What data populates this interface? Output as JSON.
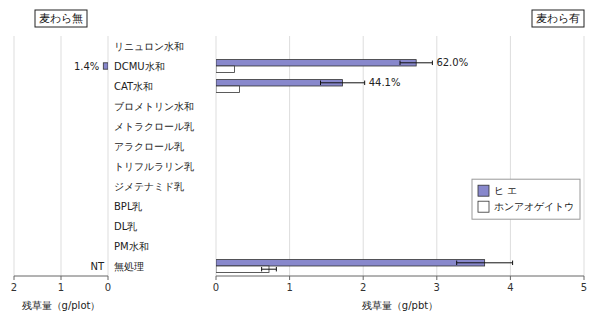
{
  "chart_data": [
    {
      "type": "bar",
      "orientation": "horizontal",
      "title": "麦わら無",
      "x_label": "残草量（g/plot）",
      "categories": [
        "リニュロン水和",
        "DCMU水和",
        "CAT水和",
        "ブロメトリン水和",
        "メトラクロール乳",
        "アラクロール乳",
        "トリフルラリン乳",
        "ジメテナミド乳",
        "BPL乳",
        "DL乳",
        "PM水和",
        "無処理"
      ],
      "series": [
        {
          "color": "#8888cc",
          "values": [
            null,
            0.1,
            null,
            null,
            null,
            null,
            null,
            null,
            null,
            null,
            null,
            null
          ]
        }
      ],
      "xlim": [
        2,
        0
      ],
      "xticks": [
        2,
        1,
        0
      ],
      "grid": true,
      "annotations": [
        {
          "text": "1.4%",
          "category": "DCMU水和"
        },
        {
          "text": "NT",
          "category": "無処理"
        }
      ]
    },
    {
      "type": "bar",
      "orientation": "horizontal",
      "title": "麦わら有",
      "x_label": "残草量（g/pbt）",
      "categories": [
        "リニュロン水和",
        "DCMU水和",
        "CAT水和",
        "ブロメトリン水和",
        "メトラクロール乳",
        "アラクロール乳",
        "トリフルラリン乳",
        "ジメテナミド乳",
        "BPL乳",
        "DL乳",
        "PM水和",
        "無処理"
      ],
      "series": [
        {
          "name": "ヒ エ",
          "color": "#8888cc",
          "values": [
            0,
            2.72,
            1.72,
            0,
            0,
            0,
            0,
            0,
            0,
            0,
            0,
            3.65
          ],
          "error": [
            0,
            0.22,
            0.3,
            0,
            0,
            0,
            0,
            0,
            0,
            0,
            0,
            0.38
          ]
        },
        {
          "name": "ホンアオゲイトウ",
          "color": "#ffffff",
          "values": [
            0,
            0.25,
            0.32,
            0,
            0,
            0,
            0,
            0,
            0,
            0,
            0,
            0.72
          ],
          "error": [
            0,
            0,
            0,
            0,
            0,
            0,
            0,
            0,
            0,
            0,
            0,
            0.1
          ]
        }
      ],
      "xlim": [
        0,
        5
      ],
      "xticks": [
        0,
        1,
        2,
        3,
        4,
        5
      ],
      "grid": true,
      "legend": "right",
      "annotations": [
        {
          "text": "62.0%",
          "category": "DCMU水和",
          "series": "ヒ エ"
        },
        {
          "text": "44.1%",
          "category": "CAT水和",
          "series": "ヒ エ"
        }
      ]
    }
  ]
}
